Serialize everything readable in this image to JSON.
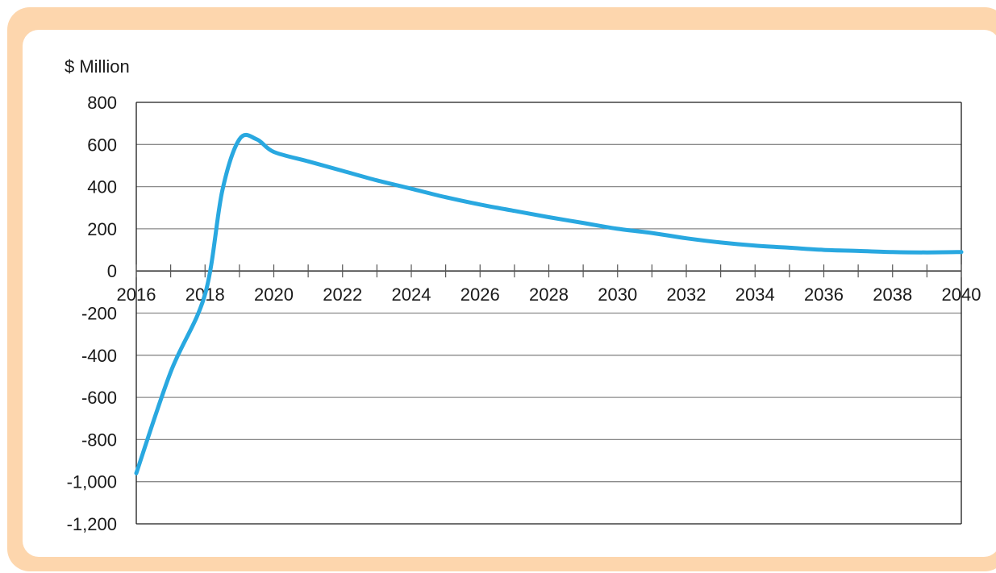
{
  "colors": {
    "frame": "#fdd6ad",
    "panel": "#ffffff",
    "series": "#29a8e0",
    "grid": "#8a8a8a",
    "axis": "#1a1a1a"
  },
  "chart_data": {
    "type": "line",
    "title": "",
    "xlabel": "",
    "ylabel": "$ Million",
    "xlim": [
      2016,
      2040
    ],
    "ylim": [
      -1200,
      800
    ],
    "x_ticks": [
      2016,
      2018,
      2020,
      2022,
      2024,
      2026,
      2028,
      2030,
      2032,
      2034,
      2036,
      2038,
      2040
    ],
    "x_tick_labels": [
      "2016",
      "2018",
      "2020",
      "2022",
      "2024",
      "2026",
      "2028",
      "2030",
      "2032",
      "2034",
      "2036",
      "2038",
      "2040"
    ],
    "y_ticks": [
      800,
      600,
      400,
      200,
      0,
      -200,
      -400,
      -600,
      -800,
      -1000,
      -1200
    ],
    "y_tick_labels": [
      "800",
      "600",
      "400",
      "200",
      "0",
      "-200",
      "-400",
      "-600",
      "-800",
      "-1,000",
      "-1,200"
    ],
    "grid": true,
    "legend": "none",
    "series": [
      {
        "name": "",
        "x": [
          2016,
          2017,
          2018,
          2018.5,
          2019,
          2019.5,
          2020,
          2021,
          2022,
          2023,
          2024,
          2025,
          2026,
          2027,
          2028,
          2029,
          2030,
          2031,
          2032,
          2033,
          2034,
          2035,
          2036,
          2037,
          2038,
          2039,
          2040
        ],
        "values": [
          -960,
          -480,
          -110,
          380,
          625,
          625,
          565,
          520,
          475,
          430,
          390,
          350,
          315,
          285,
          255,
          228,
          200,
          180,
          155,
          135,
          120,
          110,
          100,
          95,
          90,
          88,
          90
        ]
      }
    ]
  }
}
